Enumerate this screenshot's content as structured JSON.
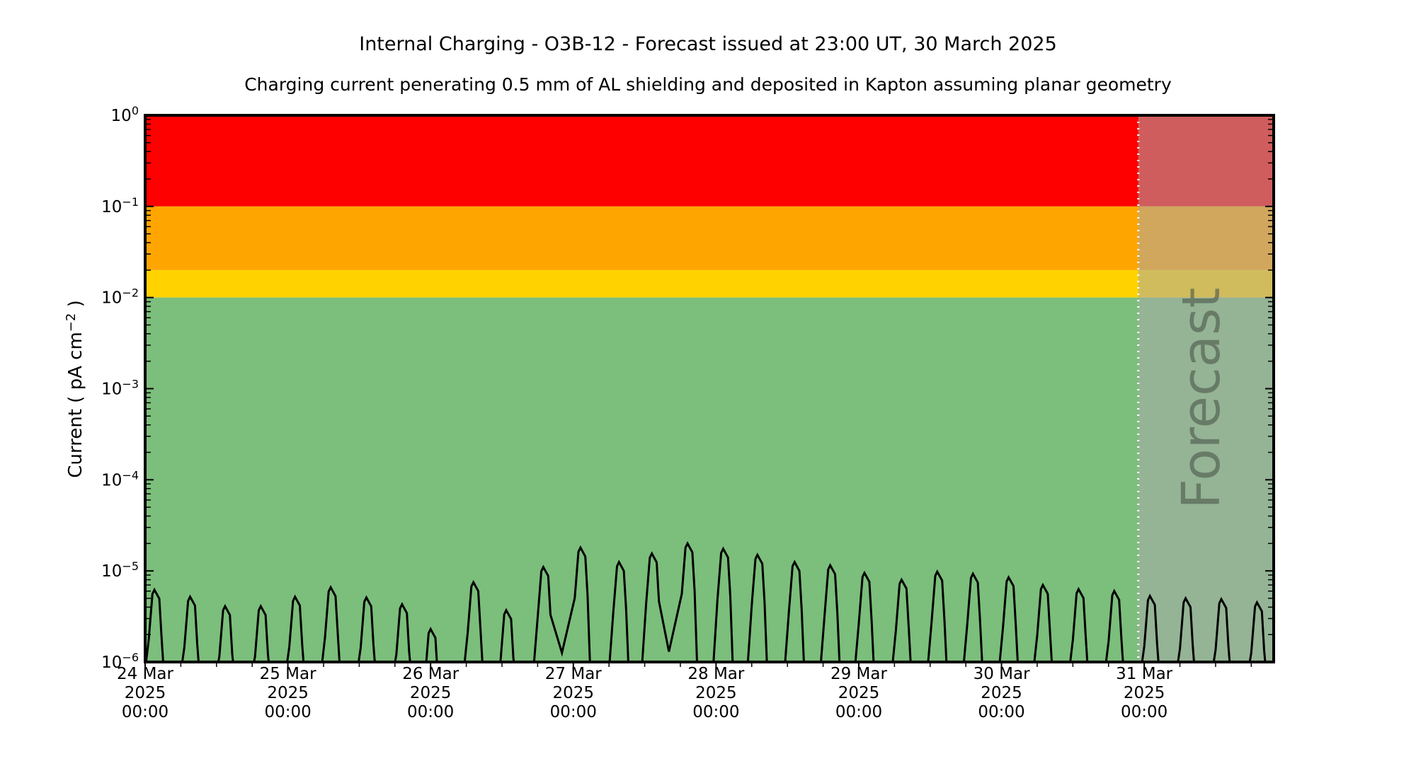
{
  "header": {
    "title": "Internal Charging - O3B-12 - Forecast issued at 23:00 UT, 30 March 2025",
    "subtitle": "Charging current penerating 0.5 mm of AL shielding and deposited in Kapton assuming planar geometry"
  },
  "chart_data": {
    "type": "line",
    "title": "Internal Charging - O3B-12 - Forecast issued at 23:00 UT, 30 March 2025",
    "subtitle": "Charging current penerating 0.5 mm of AL shielding and deposited in Kapton assuming planar geometry",
    "ylabel": "Current ( pA cm−2 )",
    "ylabel_parts": [
      "Current ( pA cm",
      "−2",
      " )"
    ],
    "grid": false,
    "legend": "none",
    "y_axis": {
      "scale": "log",
      "range": [
        1e-06,
        1.0
      ],
      "tick_labels": [
        "10⁰",
        "10⁻¹",
        "10⁻²",
        "10⁻³",
        "10⁻⁴",
        "10⁻⁵",
        "10⁻⁶"
      ],
      "tick_exponents": [
        "0",
        "−1",
        "−2",
        "−3",
        "−4",
        "−5",
        "−6"
      ],
      "tick_values": [
        1,
        0.1,
        0.01,
        0.001,
        0.0001,
        1e-05,
        1e-06
      ]
    },
    "x_axis": {
      "range_days": [
        0,
        7.907
      ],
      "minor_tick_hours": 6,
      "tick_labels": [
        [
          "24 Mar",
          "2025",
          "00:00"
        ],
        [
          "25 Mar",
          "2025",
          "00:00"
        ],
        [
          "26 Mar",
          "2025",
          "00:00"
        ],
        [
          "27 Mar",
          "2025",
          "00:00"
        ],
        [
          "28 Mar",
          "2025",
          "00:00"
        ],
        [
          "29 Mar",
          "2025",
          "00:00"
        ],
        [
          "30 Mar",
          "2025",
          "00:00"
        ],
        [
          "31 Mar",
          "2025",
          "00:00"
        ]
      ]
    },
    "bands": [
      {
        "name": "alert-red",
        "from": 0.1,
        "to": 1.0,
        "color": "#ff0000"
      },
      {
        "name": "warning-orange",
        "from": 0.02,
        "to": 0.1,
        "color": "#ffa500"
      },
      {
        "name": "caution-gold",
        "from": 0.01,
        "to": 0.02,
        "color": "#ffd200"
      },
      {
        "name": "nominal-green",
        "from": 1e-06,
        "to": 0.01,
        "color": "#7cbe7c"
      }
    ],
    "forecast": {
      "label": "Forecast",
      "start_day": 6.9583,
      "start_time": "23:00 UT, 30 March 2025",
      "overlay_color": "rgba(170,170,170,0.55)",
      "divider_color": "#ffffff",
      "text_color": "#4a554a"
    },
    "series": {
      "name": "charging-current",
      "color": "#000000",
      "floor": 1e-06,
      "peaks": [
        [
          0.065,
          6.2e-06
        ],
        [
          0.315,
          5.2e-06
        ],
        [
          0.56,
          4.1e-06
        ],
        [
          0.81,
          4.1e-06
        ],
        [
          1.05,
          5.2e-06
        ],
        [
          1.3,
          6.6e-06
        ],
        [
          1.55,
          5.1e-06
        ],
        [
          1.8,
          4.3e-06
        ],
        [
          2.0,
          2.3e-06
        ],
        [
          2.3,
          7.5e-06
        ],
        [
          2.53,
          3.7e-06
        ],
        [
          2.79,
          1.1e-05
        ],
        [
          3.05,
          1.8e-05
        ],
        [
          3.32,
          1.25e-05
        ],
        [
          3.55,
          1.55e-05
        ],
        [
          3.8,
          2e-05
        ],
        [
          4.05,
          1.75e-05
        ],
        [
          4.29,
          1.5e-05
        ],
        [
          4.55,
          1.25e-05
        ],
        [
          4.8,
          1.15e-05
        ],
        [
          5.04,
          9.5e-06
        ],
        [
          5.3,
          8e-06
        ],
        [
          5.55,
          9.8e-06
        ],
        [
          5.8,
          9.3e-06
        ],
        [
          6.05,
          8.5e-06
        ],
        [
          6.29,
          7e-06
        ],
        [
          6.54,
          6.3e-06
        ],
        [
          6.79,
          6e-06
        ],
        [
          7.04,
          5.3e-06
        ],
        [
          7.29,
          5e-06
        ],
        [
          7.54,
          4.9e-06
        ],
        [
          7.79,
          4.5e-06
        ]
      ],
      "valleys": [
        [
          2.92,
          1.26e-06
        ],
        [
          3.67,
          1.3e-06
        ]
      ]
    }
  }
}
